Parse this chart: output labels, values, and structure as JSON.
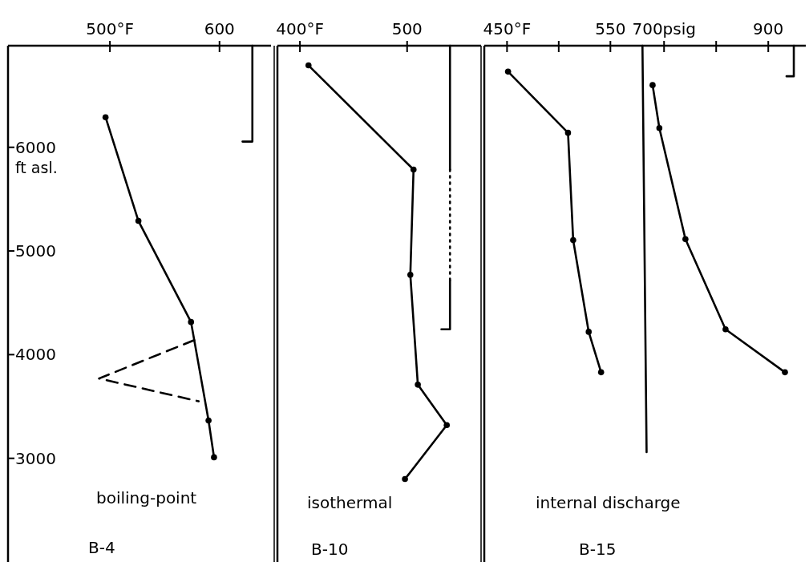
{
  "chart_data": [
    {
      "type": "line",
      "ylabel": "ft asl.",
      "annotations": [
        "boiling-point",
        "B-4"
      ],
      "xlim": [
        407,
        647
      ],
      "xticks": [
        {
          "value": 500,
          "label": "500°F"
        },
        600
      ],
      "ylim": [
        2000,
        6980
      ],
      "yticks": [
        3000,
        4000,
        5000,
        6000
      ],
      "series": [
        {
          "color": "#000000",
          "x": [
            496,
            526,
            574,
            590,
            595
          ],
          "values": [
            6290,
            5290,
            4315,
            3365,
            3010
          ],
          "marker": "circle",
          "line_style": "solid"
        },
        {
          "color": "#000000",
          "x": [
            577,
            490,
            581
          ],
          "values": [
            4140,
            3770,
            3550
          ],
          "marker": "none",
          "line_style": "dashed"
        },
        {
          "color": "#000000",
          "x": [
            630,
            630,
            621
          ],
          "values": [
            6980,
            6055,
            6055
          ],
          "marker": "none",
          "line_style": "solid"
        }
      ]
    },
    {
      "type": "line",
      "annotations": [
        "isothermal",
        "B-10"
      ],
      "xlim": [
        379,
        569
      ],
      "xticks": [
        {
          "value": 400,
          "label": "400°F"
        },
        500
      ],
      "ylim": [
        2000,
        6980
      ],
      "tick_labels": "x",
      "series": [
        {
          "color": "#000000",
          "x": [
            408,
            506,
            503,
            510,
            537,
            498
          ],
          "values": [
            6790,
            5785,
            4770,
            3710,
            3320,
            2800
          ],
          "marker": "circle",
          "line_style": "solid"
        },
        {
          "color": "#000000",
          "x": [
            540,
            540
          ],
          "values": [
            6980,
            5785
          ],
          "marker": "none",
          "line_style": "solid"
        },
        {
          "color": "#000000",
          "x": [
            540,
            540
          ],
          "values": [
            5785,
            4715
          ],
          "marker": "none",
          "line_style": "dotted"
        },
        {
          "color": "#000000",
          "x": [
            540,
            540,
            532
          ],
          "values": [
            4715,
            4245,
            4245
          ],
          "marker": "none",
          "line_style": "solid"
        }
      ]
    },
    {
      "type": "line",
      "annotations": [
        "internal discharge",
        "B-15"
      ],
      "xlim": [
        428,
        739
      ],
      "xticks": [
        {
          "value": 450,
          "label": "450°F"
        },
        {
          "value": 500,
          "label": null
        },
        550
      ],
      "x2lim": [
        355,
        972
      ],
      "x2ticks": [
        {
          "value": 700,
          "label": "700psig"
        },
        {
          "value": 800,
          "label": null
        },
        900
      ],
      "ylim": [
        2000,
        6980
      ],
      "tick_labels": "x",
      "series": [
        {
          "color": "#000000",
          "x": [
            451,
            509,
            514,
            529,
            541
          ],
          "values": [
            6730,
            6140,
            5105,
            4220,
            3830
          ],
          "marker": "circle",
          "line_style": "solid"
        },
        {
          "color": "#000000",
          "x": [
            581,
            585
          ],
          "values": [
            6980,
            3060
          ],
          "marker": "none",
          "line_style": "solid"
        },
        {
          "color": "#000000",
          "axis": "x2",
          "x": [
            678,
            691,
            741,
            818,
            932
          ],
          "values": [
            6600,
            6185,
            5115,
            4245,
            3830
          ],
          "marker": "circle",
          "line_style": "solid"
        },
        {
          "color": "#000000",
          "axis": "x2",
          "x": [
            949,
            949,
            935
          ],
          "values": [
            6980,
            6685,
            6685
          ],
          "marker": "none",
          "line_style": "solid"
        }
      ]
    }
  ]
}
